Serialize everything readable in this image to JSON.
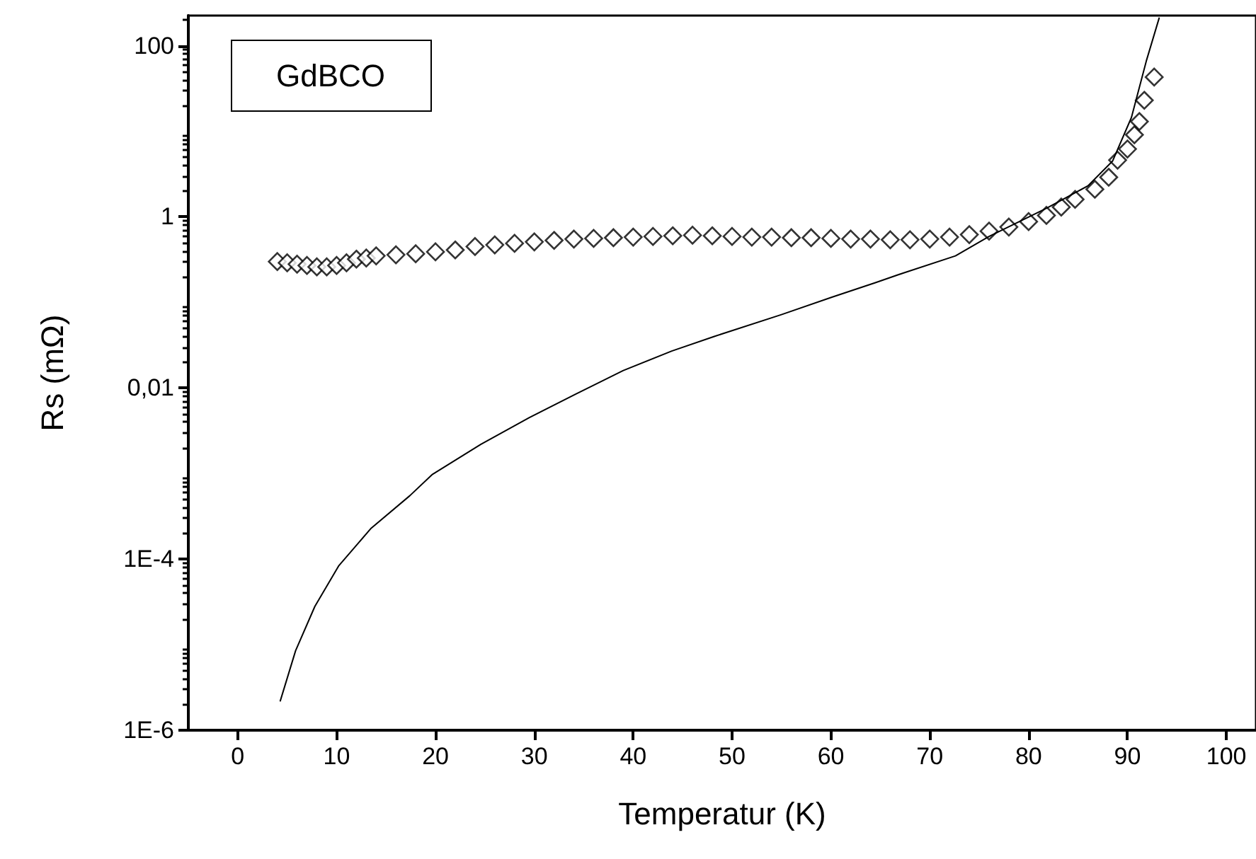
{
  "chart_data": {
    "type": "scatter",
    "xlabel": "Temperatur (K)",
    "ylabel": "Rs (mΩ)",
    "annotations": [
      "GdBCO"
    ],
    "log": "y",
    "grid": false,
    "xlim": [
      -5,
      103
    ],
    "xticks": [
      0,
      10,
      20,
      30,
      40,
      50,
      60,
      70,
      80,
      90,
      100
    ],
    "ylim": [
      1e-06,
      225
    ],
    "yticks": [
      {
        "value": 1e-06,
        "label": "1E-6"
      },
      {
        "value": 0.0001,
        "label": "1E-4"
      },
      {
        "value": 0.01,
        "label": "0,01"
      },
      1,
      100
    ],
    "series": [
      {
        "marker": "diamond",
        "color": "#000000",
        "x": [
          4,
          5,
          6,
          7,
          8,
          9,
          10,
          11,
          12,
          13,
          14,
          16,
          18,
          20,
          22,
          24,
          26,
          28,
          30,
          32,
          34,
          36,
          38,
          40,
          42,
          44,
          46,
          48,
          50,
          52,
          54,
          56,
          58,
          60,
          62,
          64,
          66,
          68,
          70,
          72,
          74,
          76,
          78,
          80,
          81.8,
          83.3,
          84.7,
          86.7,
          88.1,
          89.0,
          90.0,
          90.7,
          91.2,
          91.7,
          92.7
        ],
        "values": [
          0.3,
          0.29,
          0.28,
          0.27,
          0.26,
          0.26,
          0.27,
          0.29,
          0.32,
          0.33,
          0.35,
          0.36,
          0.37,
          0.39,
          0.41,
          0.45,
          0.47,
          0.49,
          0.51,
          0.53,
          0.55,
          0.56,
          0.57,
          0.58,
          0.59,
          0.6,
          0.61,
          0.6,
          0.59,
          0.58,
          0.58,
          0.57,
          0.57,
          0.56,
          0.55,
          0.55,
          0.54,
          0.54,
          0.55,
          0.58,
          0.62,
          0.68,
          0.76,
          0.88,
          1.04,
          1.3,
          1.6,
          2.1,
          2.9,
          4.6,
          6.2,
          9.1,
          13,
          23,
          43
        ]
      },
      {
        "type": "line",
        "marker": "none",
        "line_style": "solid",
        "color": "#000000",
        "x": [
          4.3,
          5.85,
          7.8,
          10.2,
          13.5,
          17.4,
          19.7,
          24.6,
          29.5,
          34.2,
          39,
          43.9,
          48.2,
          55,
          60.1,
          64.5,
          67.3,
          72.6,
          76,
          81.8,
          86,
          88.5,
          90.4,
          91.9,
          93.2
        ],
        "values": [
          2.2e-06,
          8.5e-06,
          2.8e-05,
          8.3e-05,
          0.00023,
          0.00055,
          0.00098,
          0.0022,
          0.0045,
          0.0085,
          0.016,
          0.027,
          0.04,
          0.072,
          0.115,
          0.17,
          0.22,
          0.35,
          0.59,
          1.26,
          2.3,
          4.5,
          14.5,
          66,
          210
        ]
      }
    ]
  }
}
